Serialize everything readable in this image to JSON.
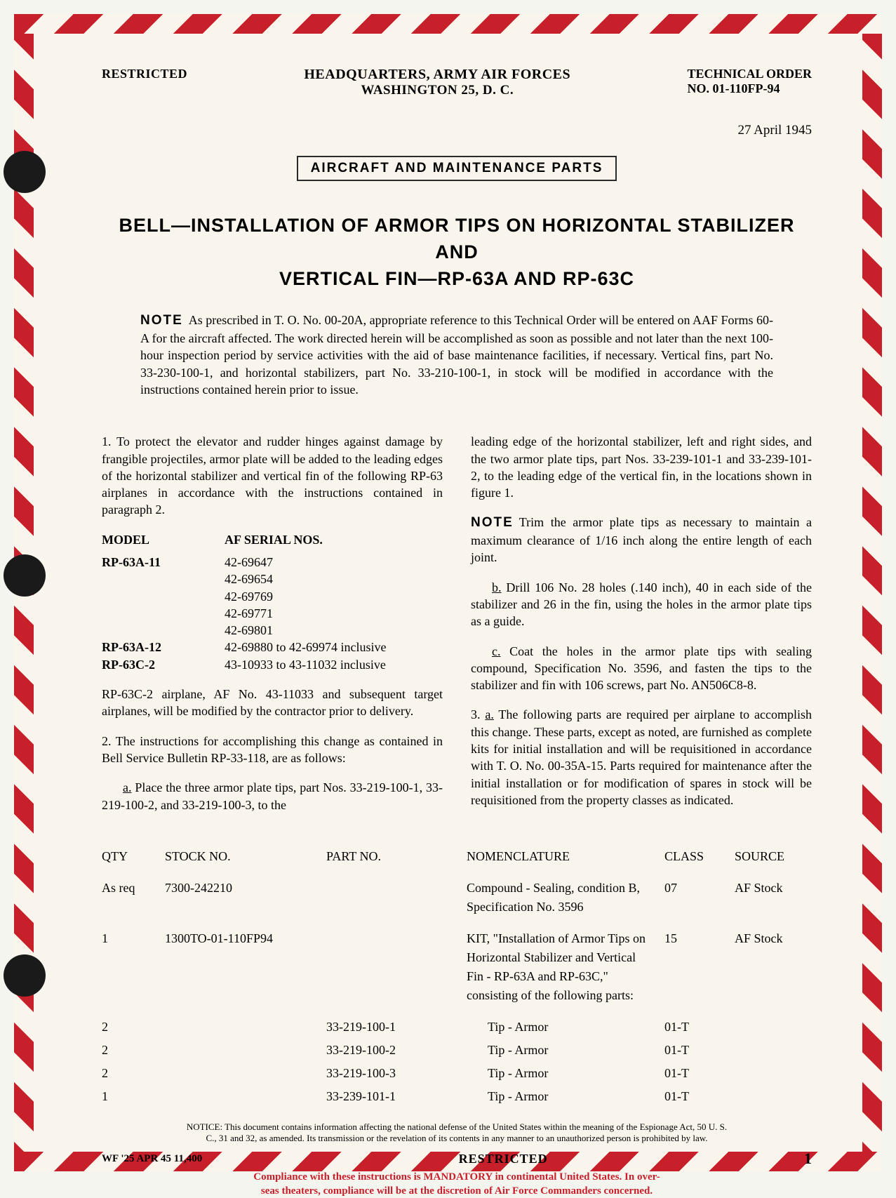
{
  "header": {
    "classification": "RESTRICTED",
    "hq_line1": "HEADQUARTERS, ARMY AIR FORCES",
    "hq_line2": "WASHINGTON 25, D. C.",
    "to_label": "TECHNICAL ORDER",
    "to_no_label": "NO.",
    "to_no": "01-110FP-94"
  },
  "date": "27 April 1945",
  "stamp": "AIRCRAFT AND MAINTENANCE PARTS",
  "title_line1": "BELL—INSTALLATION OF ARMOR TIPS ON HORIZONTAL STABILIZER AND",
  "title_line2": "VERTICAL FIN—RP-63A AND RP-63C",
  "note_label": "NOTE",
  "top_note": "As prescribed in T. O. No. 00-20A, appropriate reference to this Technical Order will be entered on AAF Forms 60-A for the aircraft affected. The work directed herein will be accomplished as soon as possible and not later than the next 100-hour inspection period by service activities with the aid of base maintenance facilities, if necessary. Vertical fins, part No. 33-230-100-1, and horizontal stabilizers, part No. 33-210-100-1, in stock will be modified in accordance with the instructions contained herein prior to issue.",
  "left": {
    "p1": "1. To protect the elevator and rudder hinges against damage by frangible projectiles, armor plate will be added to the leading edges of the horizontal stabilizer and vertical fin of the following RP-63 airplanes in accordance with the instructions contained in paragraph 2.",
    "serial_headers": {
      "model": "MODEL",
      "af": "AF SERIAL NOS."
    },
    "serials": [
      {
        "model": "RP-63A-11",
        "nos": [
          "42-69647",
          "42-69654",
          "42-69769",
          "42-69771",
          "42-69801"
        ]
      },
      {
        "model": "RP-63A-12",
        "nos": [
          "42-69880 to 42-69974 inclusive"
        ]
      },
      {
        "model": "RP-63C-2",
        "nos": [
          "43-10933 to 43-11032 inclusive"
        ]
      }
    ],
    "p_after_serials": "RP-63C-2 airplane, AF No. 43-11033 and subsequent target airplanes, will be modified by the contractor prior to delivery.",
    "p2": "2. The instructions for accomplishing this change as contained in Bell Service Bulletin RP-33-118, are as follows:",
    "p2a_prefix": "a.",
    "p2a": " Place the three armor plate tips, part Nos. 33-219-100-1, 33-219-100-2, and 33-219-100-3, to the"
  },
  "right": {
    "p2a_cont": "leading edge of the horizontal stabilizer, left and right sides, and the two armor plate tips, part Nos. 33-239-101-1 and 33-239-101-2, to the leading edge of the vertical fin, in the locations shown in figure 1.",
    "note2": "Trim the armor plate tips as necessary to maintain a maximum clearance of 1/16 inch along the entire length of each joint.",
    "p2b_prefix": "b.",
    "p2b": " Drill 106 No. 28 holes (.140 inch), 40 in each side of the stabilizer and 26 in the fin, using the holes in the armor plate tips as a guide.",
    "p2c_prefix": "c.",
    "p2c": " Coat the holes in the armor plate tips with sealing compound, Specification No. 3596, and fasten the tips to the stabilizer and fin with 106 screws, part No. AN506C8-8.",
    "p3_prefix": "a.",
    "p3": "3. ",
    "p3_rest": " The following parts are required per airplane to accomplish this change. These parts, except as noted, are furnished as complete kits for initial installation and will be requisitioned in accordance with T. O. No. 00-35A-15. Parts required for maintenance after the initial installation or for modification of spares in stock will be requisitioned from the property classes as indicated."
  },
  "parts_headers": {
    "qty": "QTY",
    "stock": "STOCK NO.",
    "part": "PART NO.",
    "nom": "NOMENCLATURE",
    "class": "CLASS",
    "source": "SOURCE"
  },
  "parts": [
    {
      "qty": "As req",
      "stock": "7300-242210",
      "part": "",
      "nom": "Compound - Sealing, condition B, Specification No. 3596",
      "class": "07",
      "source": "AF Stock"
    },
    {
      "qty": "1",
      "stock": "1300TO-01-110FP94",
      "part": "",
      "nom": "KIT, \"Installation of Armor Tips on Horizontal Stabilizer and Vertical Fin - RP-63A and RP-63C,\" consisting of the following parts:",
      "class": "15",
      "source": "AF Stock"
    },
    {
      "qty": "2",
      "stock": "",
      "part": "33-219-100-1",
      "nom": "Tip - Armor",
      "class": "01-T",
      "source": ""
    },
    {
      "qty": "2",
      "stock": "",
      "part": "33-219-100-2",
      "nom": "Tip - Armor",
      "class": "01-T",
      "source": ""
    },
    {
      "qty": "2",
      "stock": "",
      "part": "33-219-100-3",
      "nom": "Tip - Armor",
      "class": "01-T",
      "source": ""
    },
    {
      "qty": "1",
      "stock": "",
      "part": "33-239-101-1",
      "nom": "Tip - Armor",
      "class": "01-T",
      "source": ""
    }
  ],
  "notice": "NOTICE: This document contains information affecting the national defense of the United States within the meaning of the Espionage Act, 50 U. S. C., 31 and 32, as amended. Its transmission or the revelation of its contents in any manner to an unauthorized person is prohibited by law.",
  "footer": {
    "wf": "WF '25 APR 45  11,400",
    "restricted": "RESTRICTED",
    "page": "1"
  },
  "compliance_l1": "Compliance with these instructions is MANDATORY in continental United States. In over-",
  "compliance_l2": "seas theaters, compliance will be at the discretion of Air Force Commanders concerned.",
  "colors": {
    "stripe_red": "#c8202a",
    "paper": "#f9f5ec",
    "ink": "#1a1a1a"
  }
}
